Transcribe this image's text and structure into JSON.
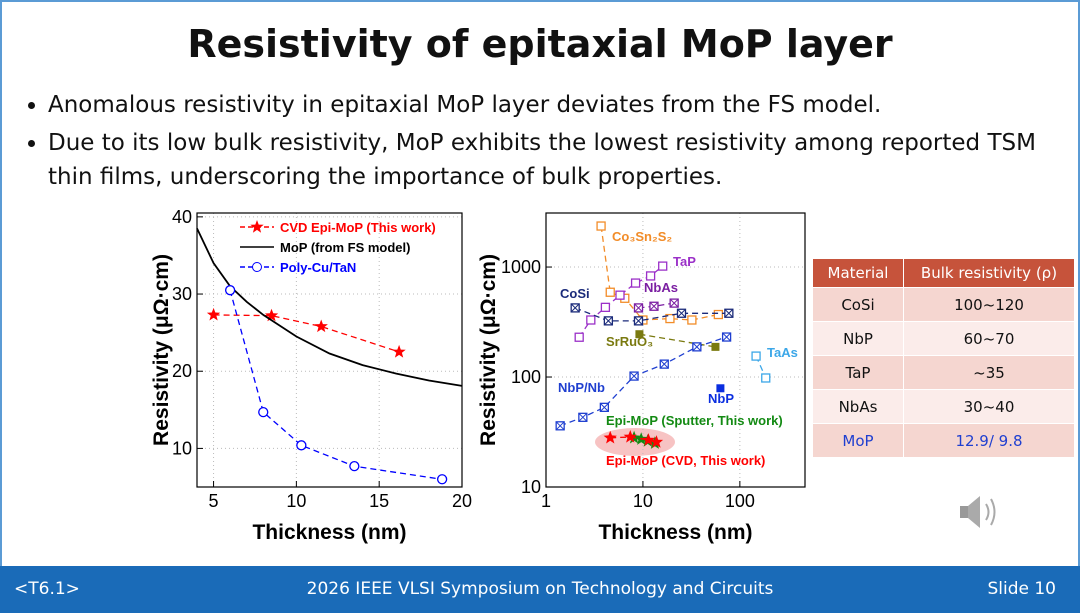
{
  "slide": {
    "title": "Resistivity of epitaxial MoP layer",
    "bullets": [
      "Anomalous resistivity in epitaxial MoP layer deviates from the FS model.",
      "Due to its low bulk resistivity, MoP exhibits the lowest resistivity among reported TSM thin films, underscoring the importance of bulk properties."
    ]
  },
  "chart_data": [
    {
      "type": "line",
      "x_label": "Thickness (nm)",
      "y_label": "Resistivity (μΩ·cm)",
      "xlim": [
        4,
        20
      ],
      "ylim": [
        5,
        40.5
      ],
      "xticks": [
        5,
        10,
        15,
        20
      ],
      "yticks": [
        10,
        20,
        30,
        40
      ],
      "grid": true,
      "legend": "upper right",
      "series": [
        {
          "name": "CVD Epi-MoP (This work)",
          "color": "#ff0000",
          "marker": "star",
          "line": "dashed",
          "x": [
            5,
            8.5,
            11.5,
            16.2
          ],
          "values": [
            27.3,
            27.2,
            25.8,
            22.5
          ]
        },
        {
          "name": "MoP (from FS model)",
          "color": "#000000",
          "marker": "none",
          "line": "solid",
          "x": [
            4,
            5,
            6,
            7,
            8,
            10,
            12,
            14,
            16,
            18,
            20
          ],
          "values": [
            38.5,
            34,
            31,
            29,
            27.3,
            24.5,
            22.3,
            20.8,
            19.7,
            18.8,
            18.1
          ]
        },
        {
          "name": "Poly-Cu/TaN",
          "color": "#0000ff",
          "marker": "circle",
          "line": "dashed",
          "x": [
            6,
            8,
            10.3,
            13.5,
            18.8
          ],
          "values": [
            30.5,
            14.7,
            10.4,
            7.7,
            6.0
          ]
        }
      ]
    },
    {
      "type": "line",
      "x_label": "Thickness (nm)",
      "y_label": "Resistivity (μΩ·cm)",
      "log_x": true,
      "log_y": true,
      "xlim": [
        1,
        470
      ],
      "ylim": [
        10,
        3100
      ],
      "xticks": [
        1,
        10,
        100
      ],
      "yticks": [
        10,
        100,
        1000
      ],
      "grid": true,
      "series": [
        {
          "name": "Co₃Sn₂S₂",
          "color": "#f28c28",
          "marker": "square-open",
          "line": "dashed",
          "x": [
            3.7,
            4.6,
            6.5,
            10,
            19,
            32,
            60
          ],
          "values": [
            2360,
            590,
            520,
            330,
            340,
            330,
            370
          ]
        },
        {
          "name": "TaP",
          "color": "#9b30c8",
          "marker": "square-open",
          "line": "dashed",
          "x": [
            2.2,
            2.9,
            4.1,
            5.8,
            8.4,
            12,
            16
          ],
          "values": [
            230,
            330,
            430,
            555,
            715,
            830,
            1020
          ]
        },
        {
          "name": "NbAs",
          "color": "#7b1fa2",
          "marker": "square-cross",
          "line": "dashed",
          "x": [
            9,
            13,
            21
          ],
          "values": [
            425,
            440,
            470
          ]
        },
        {
          "name": "CoSi",
          "color": "#1a2a7a",
          "marker": "square-cross",
          "line": "dashed",
          "x": [
            2,
            4.4,
            9,
            25,
            77
          ],
          "values": [
            425,
            324,
            324,
            380,
            380
          ]
        },
        {
          "name": "SrRuO₃",
          "color": "#7a7a10",
          "marker": "square-filled",
          "line": "dashed",
          "x": [
            9.2,
            56
          ],
          "values": [
            245,
            188
          ]
        },
        {
          "name": "TaAs",
          "color": "#3ca7e8",
          "marker": "square-open",
          "line": "dashed",
          "x": [
            147,
            185
          ],
          "values": [
            155,
            98
          ]
        },
        {
          "name": "NbP",
          "color": "#0a2ee0",
          "marker": "square-filled",
          "line": "none",
          "x": [
            63
          ],
          "values": [
            79
          ]
        },
        {
          "name": "NbP/Nb",
          "color": "#1f3fd0",
          "marker": "square-cross",
          "line": "dashed",
          "x": [
            1.4,
            2.4,
            4,
            8.1,
            16.6,
            36,
            73
          ],
          "values": [
            36,
            43,
            53,
            102,
            131,
            188,
            231
          ]
        },
        {
          "name": "Epi-MoP (Sputter, This work)",
          "color": "#138a13",
          "marker": "star",
          "line": "none",
          "x": [
            8.1,
            9.6,
            11.2,
            13.3
          ],
          "values": [
            28,
            27.2,
            26.2,
            25
          ]
        },
        {
          "name": "Epi-MoP (CVD, This work)",
          "color": "#ff0000",
          "marker": "star",
          "line": "dashed",
          "x": [
            4.6,
            7.4,
            11.4,
            13.8
          ],
          "values": [
            28,
            28.5,
            26.7,
            25.6
          ]
        }
      ]
    }
  ],
  "table": {
    "header": [
      "Material",
      "Bulk resistivity (ρ)"
    ],
    "rows": [
      [
        "CoSi",
        "100~120"
      ],
      [
        "NbP",
        "60~70"
      ],
      [
        "TaP",
        "~35"
      ],
      [
        "NbAs",
        "30~40"
      ],
      [
        "MoP",
        "12.9/ 9.8"
      ]
    ]
  },
  "footer": {
    "left": "<T6.1>",
    "center": "2026 IEEE VLSI Symposium on Technology and Circuits",
    "right": "Slide 10"
  }
}
